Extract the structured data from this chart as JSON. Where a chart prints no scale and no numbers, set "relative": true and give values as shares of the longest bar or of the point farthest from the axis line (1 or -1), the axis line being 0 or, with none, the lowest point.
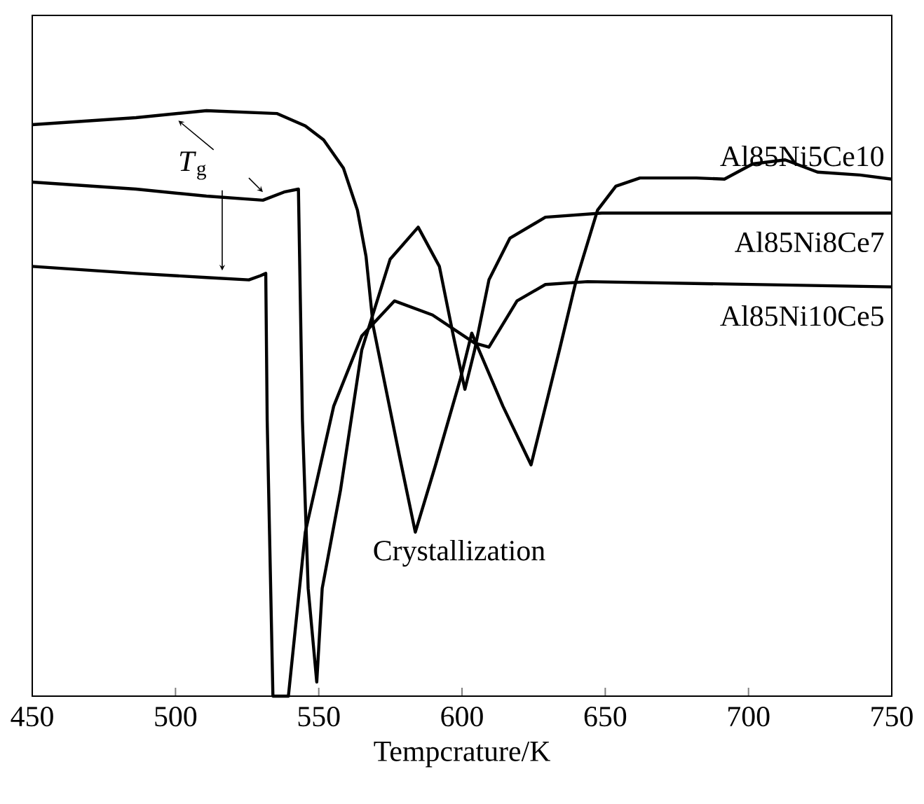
{
  "chart_data": {
    "type": "line",
    "relative": true,
    "xlabel": "Tempcrature/K",
    "xlim": [
      450,
      750
    ],
    "xticks": [
      450,
      500,
      550,
      600,
      650,
      700,
      750
    ],
    "tick_labels": "x",
    "marker": "none",
    "line_style": "solid",
    "annotations": [
      "*T*$_{g}$",
      "Crystallization"
    ],
    "series": [
      {
        "name": "Al85Ni5Ce10",
        "color": "#000000",
        "x": [
          450,
          486.2,
          510.8,
          535.5,
          545.3,
          551.7,
          558.6,
          563.5,
          566.5,
          569.0,
          578.3,
          583.7,
          590.6,
          599.5,
          603.4,
          614.3,
          624.1,
          634.0,
          639.9,
          647.3,
          653.7,
          662.1,
          681.8,
          691.6,
          701.5,
          712.8,
          724.1,
          738.9,
          750
        ],
        "values": [
          0.976,
          0.988,
          1,
          0.995,
          0.974,
          0.95,
          0.902,
          0.83,
          0.751,
          0.632,
          0.407,
          0.28,
          0.392,
          0.543,
          0.62,
          0.495,
          0.395,
          0.591,
          0.711,
          0.83,
          0.871,
          0.885,
          0.885,
          0.883,
          0.909,
          0.916,
          0.895,
          0.89,
          0.883
        ]
      },
      {
        "name": "Al85Ni8Ce7",
        "color": "#000000",
        "x": [
          450,
          486.2,
          510.8,
          530.5,
          537.9,
          542.9,
          544.3,
          546.3,
          549.3,
          551.2,
          557.6,
          565.0,
          574.9,
          584.7,
          592.1,
          597.0,
          601.0,
          604.4,
          609.4,
          616.7,
          629.1,
          648.8,
          750
        ],
        "values": [
          0.878,
          0.866,
          0.854,
          0.847,
          0.861,
          0.866,
          0.471,
          0.184,
          0.024,
          0.184,
          0.352,
          0.591,
          0.746,
          0.801,
          0.734,
          0.615,
          0.524,
          0.591,
          0.711,
          0.782,
          0.818,
          0.825,
          0.825
        ]
      },
      {
        "name": "Al85Ni10Ce5",
        "color": "#000000",
        "x": [
          450,
          486.2,
          510.8,
          525.6,
          529.6,
          531.5,
          532.0,
          534.0,
          539.4,
          545.3,
          555.2,
          565.0,
          576.4,
          589.7,
          604.4,
          609.4,
          619.2,
          629.1,
          643.8,
          750
        ],
        "values": [
          0.734,
          0.722,
          0.715,
          0.711,
          0.718,
          0.722,
          0.471,
          0,
          0,
          0.28,
          0.495,
          0.615,
          0.675,
          0.651,
          0.603,
          0.596,
          0.675,
          0.703,
          0.708,
          0.699
        ]
      }
    ]
  }
}
